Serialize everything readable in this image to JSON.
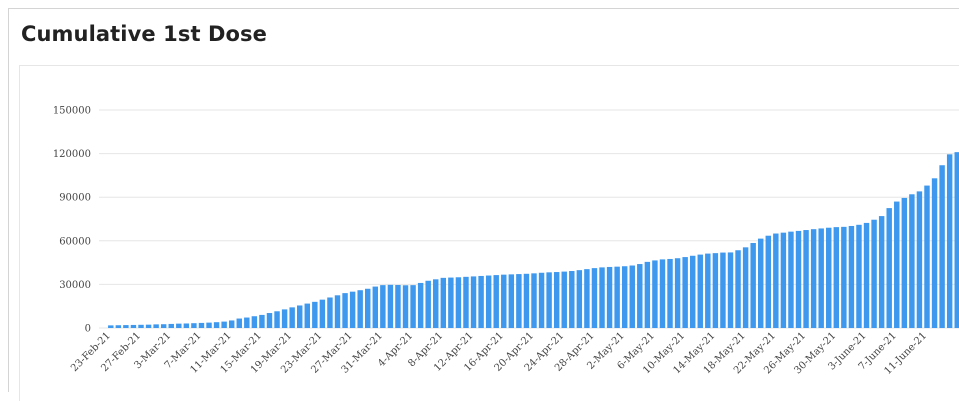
{
  "card": {
    "title": "Cumulative 1st Dose"
  },
  "chart_data": {
    "type": "bar",
    "title": "Cumulative 1st Dose",
    "xlabel": "",
    "ylabel": "",
    "ylim": [
      0,
      150000
    ],
    "y_ticks": [
      0,
      30000,
      60000,
      90000,
      120000,
      150000
    ],
    "grid": true,
    "bar_color": "#3d98ee",
    "grid_color": "#e6e6e6",
    "categories": [
      "23-Feb-21",
      "24-Feb-21",
      "25-Feb-21",
      "26-Feb-21",
      "27-Feb-21",
      "28-Feb-21",
      "1-Mar-21",
      "2-Mar-21",
      "3-Mar-21",
      "4-Mar-21",
      "5-Mar-21",
      "6-Mar-21",
      "7-Mar-21",
      "8-Mar-21",
      "9-Mar-21",
      "10-Mar-21",
      "11-Mar-21",
      "12-Mar-21",
      "13-Mar-21",
      "14-Mar-21",
      "15-Mar-21",
      "16-Mar-21",
      "17-Mar-21",
      "18-Mar-21",
      "19-Mar-21",
      "20-Mar-21",
      "21-Mar-21",
      "22-Mar-21",
      "23-Mar-21",
      "24-Mar-21",
      "25-Mar-21",
      "26-Mar-21",
      "27-Mar-21",
      "28-Mar-21",
      "29-Mar-21",
      "30-Mar-21",
      "31-Mar-21",
      "1-Apr-21",
      "2-Apr-21",
      "3-Apr-21",
      "4-Apr-21",
      "5-Apr-21",
      "6-Apr-21",
      "7-Apr-21",
      "8-Apr-21",
      "9-Apr-21",
      "10-Apr-21",
      "11-Apr-21",
      "12-Apr-21",
      "13-Apr-21",
      "14-Apr-21",
      "15-Apr-21",
      "16-Apr-21",
      "17-Apr-21",
      "18-Apr-21",
      "19-Apr-21",
      "20-Apr-21",
      "21-Apr-21",
      "22-Apr-21",
      "23-Apr-21",
      "24-Apr-21",
      "25-Apr-21",
      "26-Apr-21",
      "27-Apr-21",
      "28-Apr-21",
      "29-Apr-21",
      "30-Apr-21",
      "1-May-21",
      "2-May-21",
      "3-May-21",
      "4-May-21",
      "5-May-21",
      "6-May-21",
      "7-May-21",
      "8-May-21",
      "9-May-21",
      "10-May-21",
      "11-May-21",
      "12-May-21",
      "13-May-21",
      "14-May-21",
      "15-May-21",
      "16-May-21",
      "17-May-21",
      "18-May-21",
      "19-May-21",
      "20-May-21",
      "21-May-21",
      "22-May-21",
      "23-May-21",
      "24-May-21",
      "25-May-21",
      "26-May-21",
      "27-May-21",
      "28-May-21",
      "29-May-21",
      "30-May-21",
      "31-May-21",
      "1-June-21",
      "2-June-21",
      "3-June-21",
      "4-June-21",
      "5-June-21",
      "6-June-21",
      "7-June-21",
      "8-June-21",
      "9-June-21",
      "10-June-21",
      "11-June-21",
      "12-June-21",
      "13-June-21",
      "14-June-21",
      "15-June-21"
    ],
    "x_tick_labels": [
      "23-Feb-21",
      "27-Feb-21",
      "3-Mar-21",
      "7-Mar-21",
      "11-Mar-21",
      "15-Mar-21",
      "19-Mar-21",
      "23-Mar-21",
      "27-Mar-21",
      "31-Mar-21",
      "4-Apr-21",
      "8-Apr-21",
      "12-Apr-21",
      "16-Apr-21",
      "20-Apr-21",
      "24-Apr-21",
      "28-Apr-21",
      "2-May-21",
      "6-May-21",
      "10-May-21",
      "14-May-21",
      "18-May-21",
      "22-May-21",
      "26-May-21",
      "30-May-21",
      "3-June-21",
      "7-June-21",
      "11-June-21"
    ],
    "series": [
      {
        "values": [
          1800,
          1900,
          2000,
          2100,
          2200,
          2300,
          2500,
          2600,
          2800,
          3000,
          3100,
          3300,
          3500,
          3700,
          4000,
          4400,
          5200,
          6500,
          7200,
          8100,
          9000,
          10300,
          11500,
          12800,
          14200,
          15500,
          16800,
          18000,
          19500,
          21000,
          22500,
          24000,
          25000,
          26000,
          27000,
          28500,
          29500,
          29700,
          29600,
          29400,
          29500,
          31000,
          32500,
          33500,
          34500,
          34700,
          34900,
          35200,
          35500,
          35800,
          36100,
          36400,
          36700,
          36900,
          37100,
          37300,
          37600,
          38000,
          38300,
          38500,
          38800,
          39200,
          39800,
          40500,
          41200,
          41700,
          42000,
          42200,
          42500,
          43000,
          44000,
          45500,
          46500,
          47200,
          47500,
          48000,
          48800,
          49700,
          50500,
          51200,
          51500,
          51900,
          52000,
          53500,
          55500,
          58500,
          61500,
          63500,
          65000,
          65600,
          66300,
          66800,
          67400,
          68000,
          68500,
          69000,
          69400,
          69600,
          70200,
          71000,
          72300,
          74500,
          77000,
          82500,
          87000,
          89500,
          92000,
          94000,
          98000,
          103000,
          112000,
          119500,
          121000
        ]
      }
    ]
  }
}
